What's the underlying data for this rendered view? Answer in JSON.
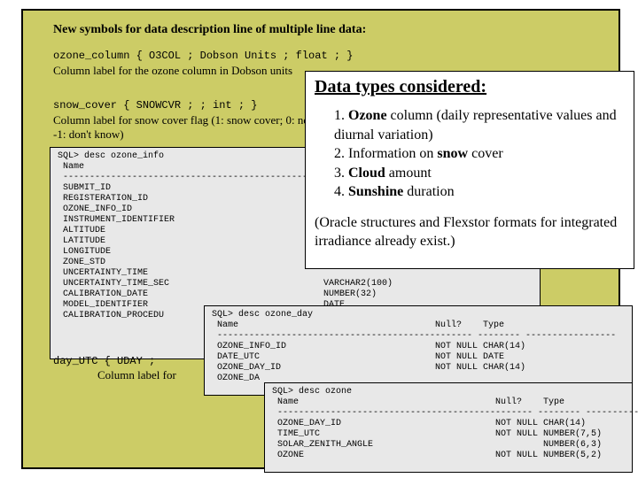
{
  "title": "New symbols for data description line of multiple line data:",
  "ozone_code": "ozone_column { O3COL ; Dobson Units ; float ; }",
  "ozone_caption": "Column label for the ozone column in Dobson units",
  "snow_code": "snow_cover { SNOWCVR ; ; int ; }",
  "snow_caption": "Column label for snow cover flag (1: snow cover; 0: no snow cover; -1: don't know)",
  "day_code": "day_UTC { UDAY ;",
  "day_caption": "Column label for",
  "sql1": "SQL> desc ozone_info\n Name\n ------------------------------------------------\n SUBMIT_ID\n REGISTERATION_ID\n OZONE_INFO_ID\n INSTRUMENT_IDENTIFIER\n ALTITUDE\n LATITUDE\n LONGITUDE\n ZONE_STD\n UNCERTAINTY_TIME\n UNCERTAINTY_TIME_SEC                             VARCHAR2(100)\n CALIBRATION_DATE                                 NUMBER(32)\n MODEL_IDENTIFIER                                 DATE\n CALIBRATION_PROCEDU",
  "sql2": "SQL> desc ozone_day\n Name                                     Null?    Type\n ------------------------------------------------ -------- -----------------\n OZONE_INFO_ID                            NOT NULL CHAR(14)\n DATE_UTC                                 NOT NULL DATE\n OZONE_DAY_ID                             NOT NULL CHAR(14)\n OZONE_DA",
  "sql3": "SQL> desc ozone\n Name                                     Null?    Type\n ------------------------------------------------ -------- -----------------\n OZONE_DAY_ID                             NOT NULL CHAR(14)\n TIME_UTC                                 NOT NULL NUMBER(7,5)\n SOLAR_ZENITH_ANGLE                                NUMBER(6,3)\n OZONE                                    NOT NULL NUMBER(5,2)",
  "overlay": {
    "title": "Data types considered:",
    "items": [
      {
        "n": "1.",
        "bold": "Ozone",
        "rest": " column (daily representative values and diurnal variation)"
      },
      {
        "n": "2.",
        "bold": "",
        "rest": "Information on ",
        "bold2": "snow",
        "rest2": " cover"
      },
      {
        "n": "3.",
        "bold": "Cloud",
        "rest": " amount"
      },
      {
        "n": "4.",
        "bold": "Sunshine",
        "rest": " duration"
      }
    ],
    "para": "(Oracle structures and Flexstor formats for integrated irradiance already exist.)"
  },
  "colors": {
    "slide_bg": "#cccc66",
    "sql_bg": "#e8e8e8",
    "overlay_bg": "#ffffff"
  }
}
